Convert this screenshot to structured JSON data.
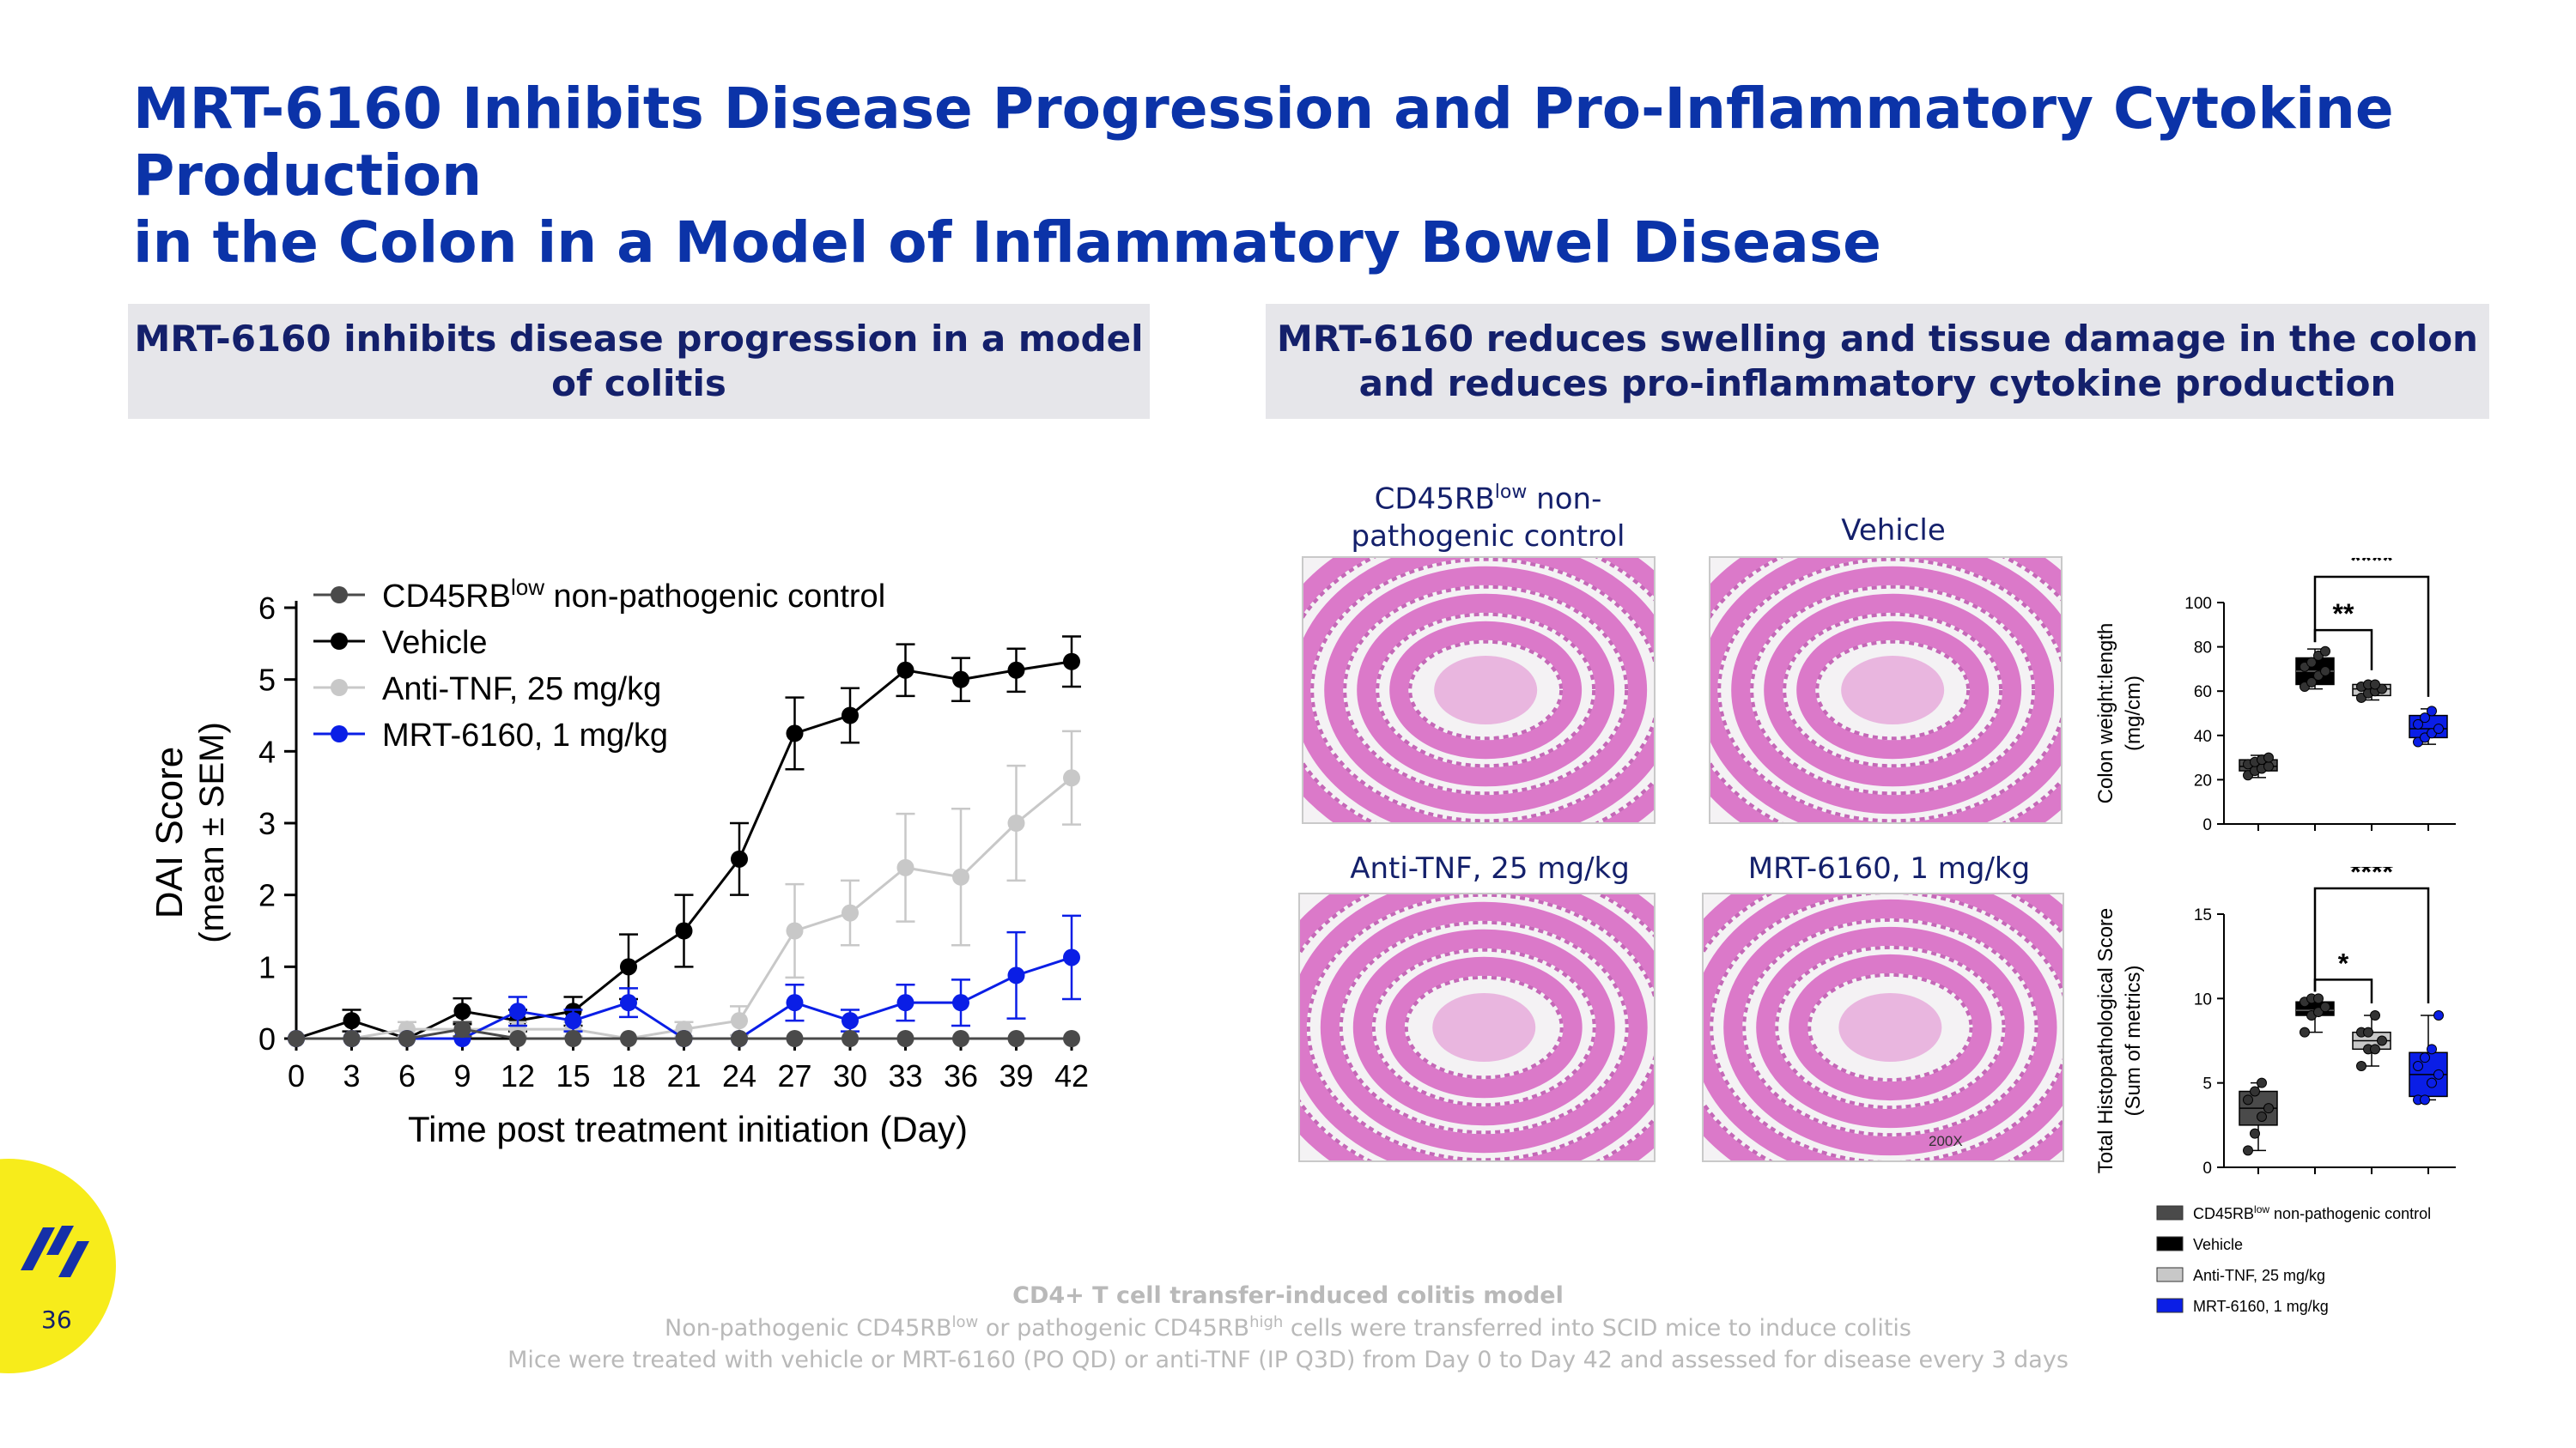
{
  "slide": {
    "title_line1": "MRT-6160 Inhibits Disease Progression and Pro-Inflammatory Cytokine Production",
    "title_line2": "in the Colon in a Model of Inflammatory Bowel Disease",
    "page_number": "36"
  },
  "left_panel": {
    "header_line1": "MRT-6160 inhibits disease progression in a model",
    "header_line2": "of colitis"
  },
  "right_panel": {
    "header_line1": "MRT-6160 reduces swelling and tissue damage in the colon",
    "header_line2": "and reduces pro-inflammatory cytokine production",
    "captions": {
      "cd45_main": "CD45RB",
      "cd45_sup": "low",
      "cd45_rest": " non-",
      "cd45_line2": "pathogenic control",
      "vehicle": "Vehicle",
      "anti_tnf": "Anti-TNF, 25 mg/kg",
      "mrt": "MRT-6160, 1 mg/kg"
    },
    "magnification": "200X"
  },
  "colors": {
    "title": "#0b33a8",
    "header_text": "#14206b",
    "control": "#4a4a4a",
    "vehicle": "#000000",
    "anti_tnf": "#c8c8c8",
    "mrt": "#0a1ee6",
    "histo_pink": "#d86cc4",
    "logo_yellow": "#f7ec1b"
  },
  "chart_data": [
    {
      "type": "line",
      "title": "",
      "xlabel": "Time post treatment initiation (Day)",
      "ylabel": "DAI Score",
      "ylabel2": "(mean ± SEM)",
      "xlim": [
        0,
        42
      ],
      "ylim": [
        0,
        6
      ],
      "x": [
        0,
        3,
        6,
        9,
        12,
        15,
        18,
        21,
        24,
        27,
        30,
        33,
        36,
        39,
        42
      ],
      "xticks": [
        "0",
        "3",
        "6",
        "9",
        "12",
        "15",
        "18",
        "21",
        "24",
        "27",
        "30",
        "33",
        "36",
        "39",
        "42"
      ],
      "yticks": [
        "0",
        "1",
        "2",
        "3",
        "4",
        "5",
        "6"
      ],
      "legend_position": "top-left",
      "series": [
        {
          "key": "vehicle",
          "name": "Vehicle",
          "values": [
            0,
            0.25,
            0,
            0.38,
            0.25,
            0.38,
            1.0,
            1.5,
            2.5,
            4.25,
            4.5,
            5.13,
            5.0,
            5.13,
            5.25
          ],
          "sem": [
            0,
            0.15,
            0,
            0.18,
            0.15,
            0.2,
            0.45,
            0.5,
            0.5,
            0.5,
            0.38,
            0.36,
            0.3,
            0.3,
            0.35
          ]
        },
        {
          "key": "anti_tnf",
          "name": "Anti-TNF, 25 mg/kg",
          "values": [
            0,
            0,
            0.13,
            0.13,
            0.13,
            0.13,
            0,
            0.13,
            0.25,
            1.5,
            1.75,
            2.38,
            2.25,
            3.0,
            3.63
          ],
          "sem": [
            0,
            0,
            0.1,
            0.1,
            0.1,
            0.1,
            0,
            0.1,
            0.2,
            0.65,
            0.45,
            0.75,
            0.95,
            0.8,
            0.65
          ]
        },
        {
          "key": "mrt",
          "name": "MRT-6160, 1 mg/kg",
          "values": [
            0,
            0,
            0,
            0,
            0.38,
            0.25,
            0.5,
            0,
            0,
            0.5,
            0.25,
            0.5,
            0.5,
            0.88,
            1.13
          ],
          "sem": [
            0,
            0,
            0,
            0,
            0.2,
            0.15,
            0.2,
            0,
            0,
            0.25,
            0.15,
            0.25,
            0.32,
            0.6,
            0.58
          ]
        },
        {
          "key": "control",
          "name_main": "CD45RB",
          "name_sup": "low",
          "name_rest": " non-pathogenic control",
          "values": [
            0,
            0,
            0,
            0.13,
            0,
            0,
            0,
            0,
            0,
            0,
            0,
            0,
            0,
            0,
            0
          ],
          "sem": [
            0,
            0,
            0,
            0.1,
            0,
            0,
            0,
            0,
            0,
            0,
            0,
            0,
            0,
            0,
            0
          ]
        }
      ]
    },
    {
      "type": "box",
      "ylabel": "Colon weight:length",
      "ylabel2": "(mg/cm)",
      "ylim": [
        0,
        100
      ],
      "yticks": [
        "0",
        "20",
        "40",
        "60",
        "80",
        "100"
      ],
      "groups": [
        {
          "key": "control",
          "min": 21,
          "q1": 24,
          "median": 26,
          "q3": 29,
          "max": 31,
          "points": [
            22,
            24,
            25,
            26,
            27,
            28,
            29,
            30
          ]
        },
        {
          "key": "vehicle",
          "min": 61,
          "q1": 63,
          "median": 69,
          "q3": 75,
          "max": 79,
          "points": [
            62,
            64,
            67,
            69,
            71,
            73,
            76,
            78
          ]
        },
        {
          "key": "anti_tnf",
          "min": 56,
          "q1": 58,
          "median": 61,
          "q3": 63,
          "max": 64,
          "points": [
            57,
            59,
            60,
            61,
            62,
            63,
            63
          ]
        },
        {
          "key": "mrt",
          "min": 36,
          "q1": 39,
          "median": 43,
          "q3": 49,
          "max": 52,
          "points": [
            37,
            39,
            41,
            43,
            45,
            48,
            51
          ]
        }
      ],
      "significance": [
        {
          "from": 1,
          "to": 2,
          "label": "**"
        },
        {
          "from": 1,
          "to": 3,
          "label": "****"
        }
      ]
    },
    {
      "type": "box",
      "ylabel": "Total Histopathological Score",
      "ylabel2": "(Sum of metrics)",
      "ylim": [
        0,
        15
      ],
      "yticks": [
        "0",
        "5",
        "10",
        "15"
      ],
      "groups": [
        {
          "key": "control",
          "min": 1,
          "q1": 2.5,
          "median": 3.5,
          "q3": 4.5,
          "max": 5,
          "points": [
            1,
            2,
            3,
            3.5,
            4,
            4.5,
            5
          ]
        },
        {
          "key": "vehicle",
          "min": 8,
          "q1": 9,
          "median": 9.3,
          "q3": 9.8,
          "max": 10,
          "points": [
            8,
            9,
            9.2,
            9.5,
            9.8,
            10,
            10
          ]
        },
        {
          "key": "anti_tnf",
          "min": 6,
          "q1": 7,
          "median": 7.5,
          "q3": 8,
          "max": 9,
          "points": [
            6,
            7,
            7,
            7.5,
            8,
            8,
            9
          ]
        },
        {
          "key": "mrt",
          "min": 4,
          "q1": 4.2,
          "median": 5.5,
          "q3": 6.8,
          "max": 9,
          "points": [
            4,
            4,
            5,
            5.5,
            6,
            6.5,
            7,
            9
          ]
        }
      ],
      "significance": [
        {
          "from": 1,
          "to": 2,
          "label": "*"
        },
        {
          "from": 1,
          "to": 3,
          "label": "****"
        }
      ]
    }
  ],
  "box_legend": [
    {
      "key": "control",
      "main": "CD45RB",
      "sup": "low",
      "rest": " non-pathogenic control"
    },
    {
      "key": "vehicle",
      "main": "Vehicle",
      "sup": "",
      "rest": ""
    },
    {
      "key": "anti_tnf",
      "main": "Anti-TNF, 25 mg/kg",
      "sup": "",
      "rest": ""
    },
    {
      "key": "mrt",
      "main": "MRT-6160, 1 mg/kg",
      "sup": "",
      "rest": ""
    }
  ],
  "footer": {
    "bold_line": "CD4+ T cell transfer-induced colitis model",
    "line2_a": "Non-pathogenic CD45RB",
    "line2_sup1": "low",
    "line2_b": " or pathogenic CD45RB",
    "line2_sup2": "high",
    "line2_c": " cells were transferred into SCID mice to induce colitis",
    "line3": "Mice were treated with vehicle or MRT-6160 (PO QD) or anti-TNF (IP Q3D) from Day 0 to Day 42 and assessed for disease every 3 days"
  }
}
